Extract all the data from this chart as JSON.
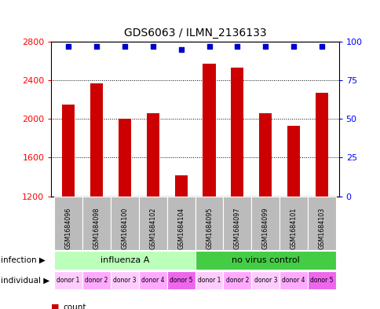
{
  "title": "GDS6063 / ILMN_2136133",
  "samples": [
    "GSM1684096",
    "GSM1684098",
    "GSM1684100",
    "GSM1684102",
    "GSM1684104",
    "GSM1684095",
    "GSM1684097",
    "GSM1684099",
    "GSM1684101",
    "GSM1684103"
  ],
  "counts": [
    2150,
    2370,
    2000,
    2060,
    1420,
    2570,
    2530,
    2060,
    1930,
    2270
  ],
  "percentiles": [
    97,
    97,
    97,
    97,
    95,
    97,
    97,
    97,
    97,
    97
  ],
  "ylim_left": [
    1200,
    2800
  ],
  "ylim_right": [
    0,
    100
  ],
  "yticks_left": [
    1200,
    1600,
    2000,
    2400,
    2800
  ],
  "yticks_right": [
    0,
    25,
    50,
    75,
    100
  ],
  "bar_color": "#cc0000",
  "dot_color": "#0000cc",
  "infection_groups": [
    {
      "label": "influenza A",
      "start": 0,
      "end": 5,
      "color": "#bbffbb"
    },
    {
      "label": "no virus control",
      "start": 5,
      "end": 10,
      "color": "#44cc44"
    }
  ],
  "donors": [
    "donor 1",
    "donor 2",
    "donor 3",
    "donor 4",
    "donor 5",
    "donor 1",
    "donor 2",
    "donor 3",
    "donor 4",
    "donor 5"
  ],
  "donor_colors": [
    "#ffccff",
    "#ffaaff",
    "#ffccff",
    "#ffaaff",
    "#ee66ee",
    "#ffccff",
    "#ffaaff",
    "#ffccff",
    "#ffaaff",
    "#ee66ee"
  ],
  "sample_bg_color": "#bbbbbb",
  "legend_count_color": "#cc0000",
  "legend_pct_color": "#0000cc",
  "xlabel_infection": "infection",
  "xlabel_individual": "individual"
}
